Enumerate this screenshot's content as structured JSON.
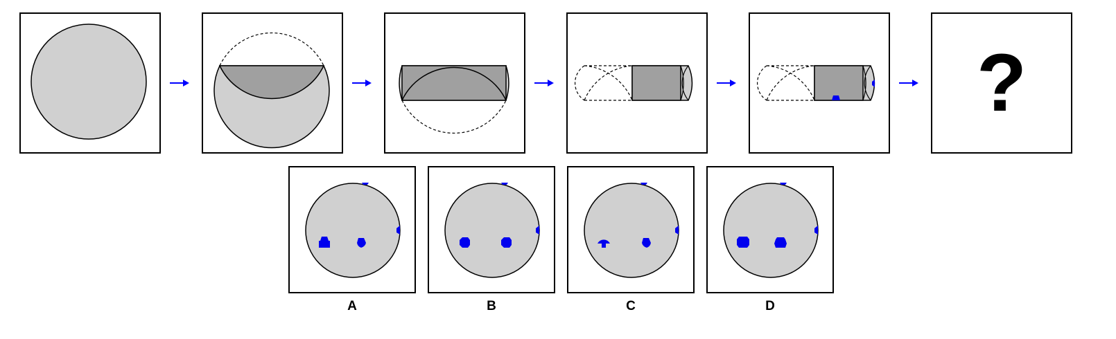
{
  "puzzle": {
    "question_mark": "?",
    "options": [
      {
        "label": "A"
      },
      {
        "label": "B"
      },
      {
        "label": "C"
      },
      {
        "label": "D"
      }
    ]
  },
  "colors": {
    "light_gray": "#d0d0d0",
    "dark_gray": "#a0a0a0",
    "punch_blue": "#0000ee",
    "arrow_blue": "#0000ff",
    "outline": "#000000"
  }
}
